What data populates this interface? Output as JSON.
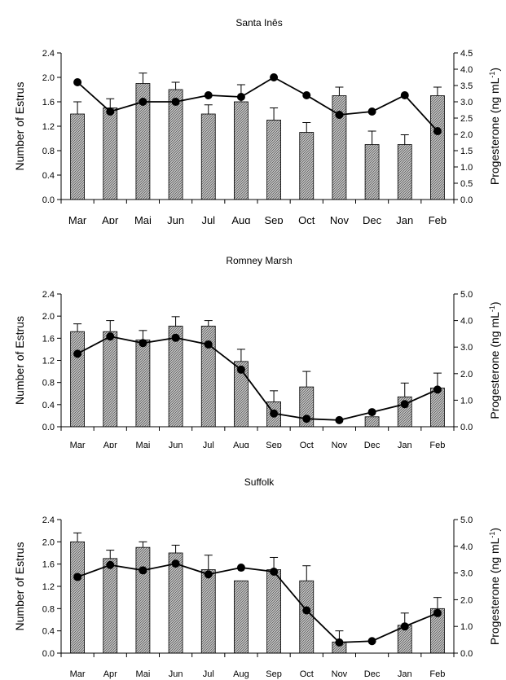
{
  "chart_data": [
    {
      "type": "bar",
      "title": "Santa Inês",
      "categories": [
        "Mar",
        "Apr",
        "Mai",
        "Jun",
        "Jul",
        "Aug",
        "Sep",
        "Oct",
        "Nov",
        "Dec",
        "Jan",
        "Feb"
      ],
      "series": [
        {
          "axis": "left",
          "kind": "bar",
          "values": [
            1.4,
            1.5,
            1.9,
            1.8,
            1.4,
            1.6,
            1.3,
            1.1,
            1.7,
            0.9,
            0.9,
            1.7
          ],
          "errors": [
            0.2,
            0.15,
            0.17,
            0.12,
            0.15,
            0.28,
            0.2,
            0.16,
            0.14,
            0.22,
            0.16,
            0.14
          ]
        },
        {
          "axis": "right",
          "kind": "line",
          "values": [
            3.6,
            2.7,
            3.0,
            3.0,
            3.2,
            3.15,
            3.75,
            3.2,
            2.6,
            2.7,
            3.2,
            2.1
          ]
        }
      ],
      "ylabel": "Number of Estrus",
      "ylim": [
        0,
        2.4
      ],
      "yticks": [
        "0.0",
        "0.4",
        "0.8",
        "1.2",
        "1.6",
        "2.0",
        "2.4"
      ],
      "y2label": "Progesterone (ng mL",
      "y2label_sup": "-1",
      "y2label_close": ")",
      "y2lim": [
        0,
        4.5
      ],
      "y2ticks": [
        "0.0",
        "0.5",
        "1.0",
        "1.5",
        "2.0",
        "2.5",
        "3.0",
        "3.5",
        "4.0",
        "4.5"
      ]
    },
    {
      "type": "bar",
      "title": "Romney Marsh",
      "categories": [
        "Mar",
        "Apr",
        "Mai",
        "Jun",
        "Jul",
        "Aug",
        "Sep",
        "Oct",
        "Nov",
        "Dec",
        "Jan",
        "Feb"
      ],
      "series": [
        {
          "axis": "left",
          "kind": "bar",
          "values": [
            1.72,
            1.72,
            1.57,
            1.82,
            1.82,
            1.18,
            0.45,
            0.72,
            0.0,
            0.18,
            0.54,
            0.7
          ],
          "errors": [
            0.14,
            0.2,
            0.17,
            0.17,
            0.1,
            0.22,
            0.2,
            0.28,
            0.0,
            0.0,
            0.25,
            0.27
          ]
        },
        {
          "axis": "right",
          "kind": "line",
          "values": [
            2.75,
            3.4,
            3.15,
            3.35,
            3.1,
            2.15,
            0.5,
            0.3,
            0.25,
            0.55,
            0.85,
            1.4
          ]
        }
      ],
      "ylabel": "Number of Estrus",
      "ylim": [
        0,
        2.4
      ],
      "yticks": [
        "0.0",
        "0.4",
        "0.8",
        "1.2",
        "1.6",
        "2.0",
        "2.4"
      ],
      "y2label": "Progesterone (ng mL",
      "y2label_sup": "-1",
      "y2label_close": ")",
      "y2lim": [
        0,
        5.0
      ],
      "y2ticks": [
        "0.0",
        "1.0",
        "2.0",
        "3.0",
        "4.0",
        "5.0"
      ]
    },
    {
      "type": "bar",
      "title": "Suffolk",
      "categories": [
        "Mar",
        "Apr",
        "Mai",
        "Jun",
        "Jul",
        "Aug",
        "Sep",
        "Oct",
        "Nov",
        "Dec",
        "Jan",
        "Feb"
      ],
      "series": [
        {
          "axis": "left",
          "kind": "bar",
          "values": [
            2.0,
            1.7,
            1.9,
            1.8,
            1.5,
            1.3,
            1.5,
            1.3,
            0.2,
            0.0,
            0.5,
            0.8
          ],
          "errors": [
            0.16,
            0.15,
            0.1,
            0.14,
            0.26,
            0.0,
            0.22,
            0.27,
            0.2,
            0.0,
            0.22,
            0.2
          ]
        },
        {
          "axis": "right",
          "kind": "line",
          "values": [
            2.85,
            3.3,
            3.1,
            3.35,
            2.95,
            3.2,
            3.05,
            1.6,
            0.4,
            0.45,
            1.0,
            1.5
          ]
        }
      ],
      "ylabel": "Number of Estrus",
      "ylim": [
        0,
        2.4
      ],
      "yticks": [
        "0.0",
        "0.4",
        "0.8",
        "1.2",
        "1.6",
        "2.0",
        "2.4"
      ],
      "y2label": "Progesterone (ng mL",
      "y2label_sup": "-1",
      "y2label_close": ")",
      "y2lim": [
        0,
        5.0
      ],
      "y2ticks": [
        "0.0",
        "1.0",
        "2.0",
        "3.0",
        "4.0",
        "5.0"
      ]
    }
  ]
}
